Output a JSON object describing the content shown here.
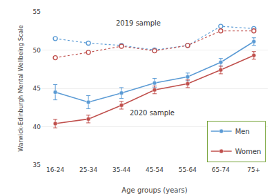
{
  "chart_data": {
    "type": "line",
    "xlabel": "Age groups (years)",
    "ylabel": "Warwick-Edinburgh Mental Wellbeing Scale",
    "categories": [
      "16-24",
      "25-34",
      "35-44",
      "45-54",
      "55-64",
      "65-74",
      "75+"
    ],
    "series": [
      {
        "name": "Men",
        "color": "#5b9bd5",
        "values": [
          51.5,
          50.9,
          50.6,
          50.0,
          50.6,
          53.1,
          52.8
        ],
        "line_style": "dot",
        "marker": "open"
      },
      {
        "name": "Women",
        "color": "#c0504d",
        "values": [
          49.0,
          49.7,
          50.5,
          49.9,
          50.6,
          52.5,
          52.5
        ],
        "line_style": "dot",
        "marker": "open"
      },
      {
        "name": "Men",
        "color": "#5b9bd5",
        "values": [
          44.5,
          43.2,
          44.4,
          45.7,
          46.5,
          48.4,
          51.1
        ],
        "errors": [
          1.0,
          0.85,
          0.7,
          0.6,
          0.5,
          0.5,
          0.5
        ],
        "line_style": "solid",
        "marker": "filled"
      },
      {
        "name": "Women",
        "color": "#c0504d",
        "values": [
          40.4,
          41.0,
          42.8,
          44.8,
          45.6,
          47.4,
          49.3
        ],
        "errors": [
          0.55,
          0.5,
          0.5,
          0.5,
          0.5,
          0.5,
          0.5
        ],
        "line_style": "solid",
        "marker": "filled"
      }
    ],
    "annotations": [
      {
        "text": "2019 sample",
        "x": 1.8,
        "y": 52.8
      },
      {
        "text": "2020 sample",
        "x": 2.2,
        "y": 42.5
      }
    ],
    "ylim": [
      35.0,
      55.0
    ],
    "yticks": [
      35.0,
      40.0,
      45.0,
      50.0,
      55.0
    ],
    "grid": true,
    "legend": "lower right"
  }
}
